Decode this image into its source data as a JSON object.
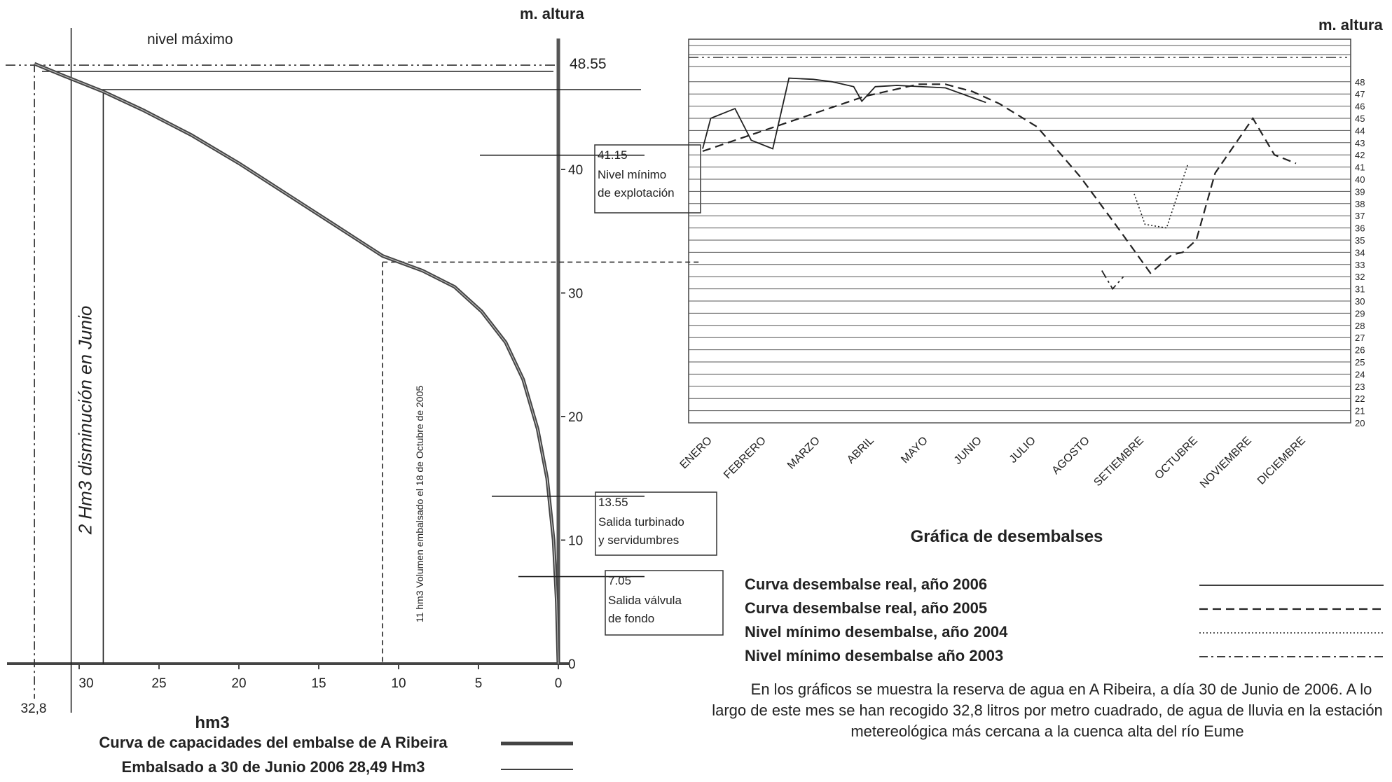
{
  "chart_data": [
    {
      "type": "line",
      "title": "Curva de capacidades del embalse de A Ribeira",
      "xlabel": "hm3",
      "ylabel": "m. altura",
      "x_reversed": true,
      "xlim": [
        0,
        33
      ],
      "ylim": [
        0,
        48.55
      ],
      "x_ticks": [
        "30",
        "25",
        "20",
        "15",
        "10",
        "5",
        "0"
      ],
      "y_ticks": [
        "0",
        "10",
        "20",
        "30",
        "40"
      ],
      "top_tick_label": "48.55",
      "curve": {
        "x": [
          0,
          0.1,
          0.3,
          0.7,
          1.3,
          2.2,
          3.3,
          4.8,
          6.5,
          8.5,
          11.0,
          14.0,
          17.0,
          20.0,
          23.0,
          26.0,
          28.49,
          31.0,
          32.8
        ],
        "y": [
          0,
          5,
          10,
          15,
          19,
          23,
          26,
          28.5,
          30.5,
          31.8,
          33.0,
          35.5,
          38.0,
          40.5,
          42.8,
          44.8,
          46.3,
          47.6,
          48.55
        ]
      },
      "embalsado_x": 28.49,
      "diminution_x": 30.5,
      "diminution_label": "2 Hm3 disminución en Junio",
      "october_x": 11,
      "october_y": 32.5,
      "october_label": "11 hm3 Volumen embalsado el 18 de Octubre de 2005",
      "nivel_maximo_label": "nivel máximo",
      "max_volume_label": "32,8",
      "annotations": [
        {
          "level": 41.15,
          "value": "41.15",
          "lines": [
            "Nivel mínimo",
            "de explotación"
          ]
        },
        {
          "level": 13.55,
          "value": "13.55",
          "lines": [
            "Salida turbinado",
            "y servidumbres"
          ]
        },
        {
          "level": 7.05,
          "value": "7.05",
          "lines": [
            "Salida válvula",
            "de fondo"
          ]
        }
      ],
      "legend": [
        {
          "name": "Curva de capacidades del embalse de A Ribeira",
          "style": "double"
        },
        {
          "name": "Embalsado a 30 de Junio 2006  28,49 Hm3",
          "style": "solid"
        }
      ]
    },
    {
      "type": "line",
      "title": "Gráfica de desembalses",
      "ylabel": "m. altura",
      "ylim": [
        20,
        48.55
      ],
      "categories": [
        "ENERO",
        "FEBRERO",
        "MARZO",
        "ABRIL",
        "MAYO",
        "JUNIO",
        "JULIO",
        "AGOSTO",
        "SETIEMBRE",
        "OCTUBRE",
        "NOVIEMBRE",
        "DICIEMBRE"
      ],
      "y_ticks": [
        "20",
        "21",
        "22",
        "23",
        "24",
        "25",
        "26",
        "27",
        "28",
        "29",
        "30",
        "31",
        "32",
        "33",
        "34",
        "35",
        "36",
        "37",
        "38",
        "39",
        "40",
        "41",
        "42",
        "43",
        "44",
        "45",
        "46",
        "47",
        "48"
      ],
      "max_level": 48.55,
      "series": [
        {
          "name": "Curva desembalse real, año 2006",
          "style": "solid",
          "x": [
            1.0,
            1.15,
            1.6,
            1.9,
            2.3,
            2.6,
            3.05,
            3.4,
            3.8,
            3.95,
            4.2,
            4.6,
            5.5,
            6.25
          ],
          "y": [
            42.5,
            45.0,
            45.8,
            43.2,
            42.5,
            48.3,
            48.2,
            48.0,
            47.6,
            46.4,
            47.6,
            47.7,
            47.5,
            46.3
          ]
        },
        {
          "name": "Curva desembalse real, año 2005",
          "style": "dashed",
          "x": [
            1.0,
            2.0,
            3.0,
            4.0,
            5.0,
            5.5,
            6.0,
            6.5,
            7.2,
            8.0,
            8.7,
            9.3,
            9.7,
            9.9,
            10.15,
            10.5,
            11.2,
            11.6,
            12.0
          ],
          "y": [
            42.3,
            43.8,
            45.3,
            46.8,
            47.8,
            47.8,
            47.2,
            46.2,
            44.3,
            40.2,
            36.0,
            32.3,
            33.8,
            34.0,
            35.0,
            40.5,
            45.0,
            42.0,
            41.3
          ]
        },
        {
          "name": "Nivel mínimo desembalse, año 2004",
          "style": "dotted",
          "x": [
            9.0,
            9.2,
            9.6,
            10.0
          ],
          "y": [
            38.8,
            36.3,
            36.0,
            41.3
          ]
        },
        {
          "name": "Nivel mínimo desembalse año 2003",
          "style": "dashdot",
          "x": [
            8.4,
            8.6,
            8.8
          ],
          "y": [
            32.5,
            31.0,
            32.0
          ]
        }
      ]
    }
  ],
  "paragraph": "En los gráficos se muestra la reserva de agua en A Ribeira, a día 30 de Junio de 2006. A lo largo de este mes se han recogido 32,8 litros por metro cuadrado, de agua de lluvia en la estación metereológica más cercana a la cuenca alta del río Eume"
}
